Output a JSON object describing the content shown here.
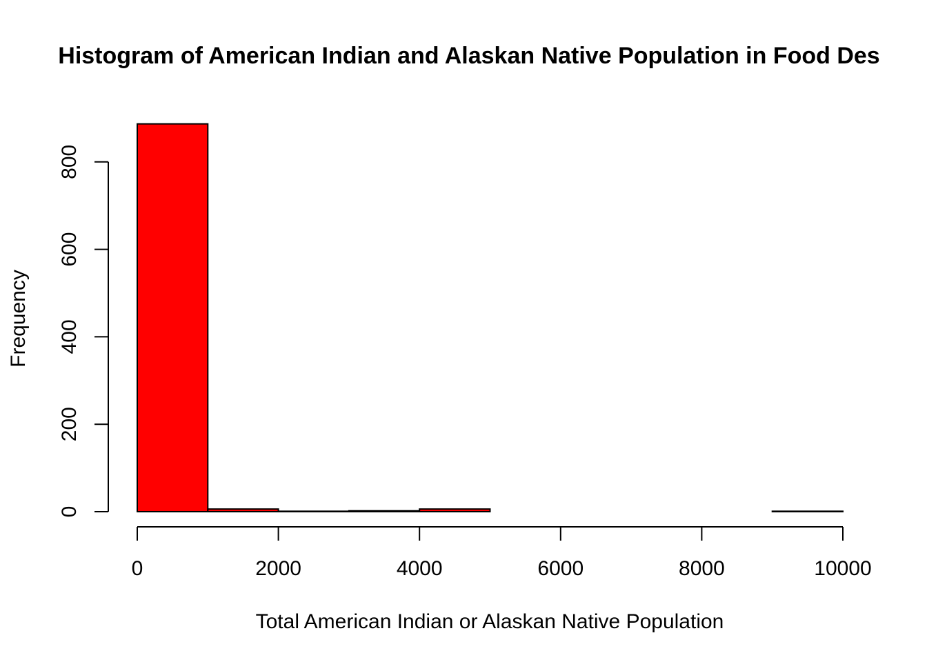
{
  "chart_data": {
    "type": "bar",
    "title": "Histogram of American Indian and Alaskan Native Population in Food Des",
    "xlabel": "Total American Indian or Alaskan Native Population",
    "ylabel": "Frequency",
    "bin_edges": [
      0,
      1000,
      2000,
      3000,
      4000,
      5000,
      6000,
      7000,
      8000,
      9000,
      10000
    ],
    "values": [
      887,
      6,
      1,
      2,
      6,
      0,
      0,
      0,
      0,
      1
    ],
    "xlim": [
      0,
      10000
    ],
    "ylim": [
      0,
      887
    ],
    "x_ticks": [
      0,
      2000,
      4000,
      6000,
      8000,
      10000
    ],
    "y_ticks": [
      0,
      200,
      400,
      600,
      800
    ],
    "bar_color": "#ff0000",
    "grid": false
  }
}
